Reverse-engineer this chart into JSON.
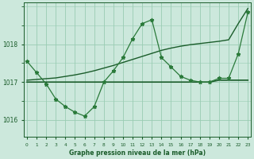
{
  "title": "Graphe pression niveau de la mer (hPa)",
  "background_color": "#cce8dc",
  "grid_color": "#99ccb3",
  "line_color_dark": "#1a5c2a",
  "line_color_mid": "#2a7a3a",
  "x_labels": [
    0,
    1,
    2,
    3,
    4,
    5,
    6,
    7,
    8,
    9,
    10,
    11,
    12,
    13,
    14,
    15,
    16,
    17,
    18,
    19,
    20,
    21,
    22,
    23
  ],
  "y_ticks": [
    1016,
    1017,
    1018
  ],
  "ylim": [
    1015.55,
    1019.1
  ],
  "xlim": [
    -0.3,
    23.3
  ],
  "series_jagged": [
    1017.55,
    1017.25,
    1016.95,
    1016.55,
    1016.35,
    1016.2,
    1016.1,
    1016.35,
    1017.0,
    1017.3,
    1017.65,
    1018.15,
    1018.55,
    1018.65,
    1017.65,
    1017.4,
    1017.15,
    1017.05,
    1017.0,
    1017.0,
    1017.1,
    1017.1,
    1017.75,
    1018.85
  ],
  "series_smooth": [
    1017.05,
    1017.07,
    1017.09,
    1017.11,
    1017.15,
    1017.19,
    1017.24,
    1017.3,
    1017.37,
    1017.44,
    1017.52,
    1017.6,
    1017.68,
    1017.76,
    1017.84,
    1017.9,
    1017.95,
    1017.99,
    1018.02,
    1018.05,
    1018.08,
    1018.12,
    1018.55,
    1018.95
  ],
  "series_flat": [
    1017.0,
    1017.0,
    1017.0,
    1017.0,
    1017.0,
    1017.0,
    1017.0,
    1017.0,
    1017.0,
    1017.0,
    1017.0,
    1017.0,
    1017.0,
    1017.0,
    1017.0,
    1017.0,
    1017.0,
    1017.0,
    1017.0,
    1017.0,
    1017.05,
    1017.05,
    1017.05,
    1017.05
  ]
}
